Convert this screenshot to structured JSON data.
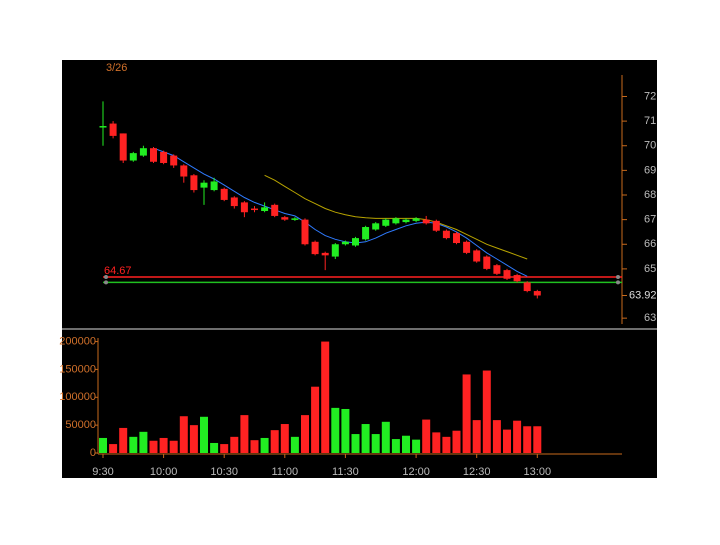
{
  "chart_data": [
    {
      "type": "candlestick",
      "title": "3/26",
      "open": [
        70.75,
        70.9,
        70.5,
        69.4,
        69.6,
        69.9,
        69.75,
        69.6,
        69.2,
        68.8,
        68.3,
        68.2,
        68.25,
        67.9,
        67.7,
        67.45,
        67.35,
        67.6,
        67.1,
        67.0,
        67.0,
        66.1,
        65.65,
        65.5,
        66.0,
        65.95,
        66.2,
        66.6,
        66.75,
        66.85,
        66.9,
        66.95,
        67.0,
        66.95,
        66.55,
        66.45,
        66.1,
        65.75,
        65.5,
        65.15,
        64.95,
        64.75,
        64.45,
        64.1
      ],
      "high": [
        71.8,
        71.0,
        70.5,
        69.75,
        70.0,
        69.95,
        69.8,
        69.65,
        69.25,
        68.85,
        68.6,
        68.7,
        68.3,
        67.95,
        67.75,
        67.55,
        67.7,
        67.65,
        67.15,
        67.1,
        67.05,
        66.15,
        65.7,
        66.05,
        66.15,
        66.3,
        66.75,
        66.9,
        67.05,
        67.1,
        67.05,
        67.1,
        67.15,
        67.0,
        66.6,
        66.5,
        66.15,
        65.8,
        65.55,
        65.2,
        65.0,
        64.8,
        64.5,
        64.15
      ],
      "low": [
        70.0,
        70.3,
        69.3,
        69.35,
        69.55,
        69.3,
        69.25,
        69.1,
        68.5,
        68.1,
        67.6,
        68.15,
        67.75,
        67.45,
        67.1,
        67.3,
        67.3,
        67.1,
        66.95,
        66.95,
        65.95,
        65.55,
        64.95,
        65.4,
        65.95,
        65.9,
        66.15,
        66.55,
        66.7,
        66.8,
        66.85,
        66.9,
        66.8,
        66.5,
        66.2,
        66.0,
        65.6,
        65.25,
        64.95,
        64.75,
        64.55,
        64.45,
        64.05,
        63.8
      ],
      "close": [
        70.8,
        70.4,
        69.4,
        69.7,
        69.9,
        69.35,
        69.3,
        69.2,
        68.75,
        68.2,
        68.5,
        68.55,
        67.8,
        67.55,
        67.3,
        67.4,
        67.5,
        67.15,
        67.0,
        67.05,
        66.0,
        65.6,
        65.55,
        66.0,
        66.1,
        66.25,
        66.7,
        66.85,
        67.0,
        67.05,
        67.0,
        67.05,
        66.85,
        66.55,
        66.25,
        66.05,
        65.65,
        65.3,
        65.0,
        64.8,
        64.6,
        64.5,
        64.1,
        63.92
      ],
      "up_color": "#22ee22",
      "down_color": "#ff2222",
      "series": [
        {
          "color": "#2f7bff",
          "values": [
            null,
            null,
            null,
            null,
            null,
            69.9,
            69.75,
            69.6,
            69.35,
            69.1,
            68.85,
            68.65,
            68.4,
            68.15,
            67.9,
            67.7,
            67.55,
            67.4,
            67.25,
            67.15,
            66.9,
            66.6,
            66.35,
            66.2,
            66.1,
            66.05,
            66.1,
            66.25,
            66.45,
            66.6,
            66.75,
            66.85,
            66.9,
            66.85,
            66.7,
            66.5,
            66.25,
            65.95,
            65.65,
            65.4,
            65.15,
            64.9,
            64.7,
            null
          ]
        },
        {
          "color": "#b8a400",
          "values": [
            null,
            null,
            null,
            null,
            null,
            null,
            null,
            null,
            null,
            null,
            null,
            null,
            null,
            null,
            null,
            null,
            68.8,
            68.6,
            68.35,
            68.1,
            67.85,
            67.65,
            67.45,
            67.3,
            67.2,
            67.12,
            67.08,
            67.05,
            67.05,
            67.05,
            67.05,
            67.05,
            67.0,
            66.9,
            66.75,
            66.6,
            66.4,
            66.2,
            66.0,
            65.85,
            65.7,
            65.55,
            65.4,
            null
          ]
        }
      ],
      "hlines": [
        {
          "value": 64.67,
          "color": "#ff2020",
          "show_label": true
        },
        {
          "value": 64.45,
          "color": "#20c020",
          "show_label": false
        }
      ],
      "last_price": 63.92,
      "ylim": [
        62.6,
        73.4
      ],
      "yticks": [
        63,
        65,
        66,
        67,
        68,
        69,
        70,
        71,
        72
      ]
    },
    {
      "type": "bar",
      "categories": [
        "9:30",
        null,
        null,
        null,
        null,
        null,
        "10:00",
        null,
        null,
        null,
        null,
        null,
        "10:30",
        null,
        null,
        null,
        null,
        null,
        "11:00",
        null,
        null,
        null,
        null,
        null,
        "11:30",
        null,
        null,
        null,
        null,
        null,
        null,
        "12:00",
        null,
        null,
        null,
        null,
        null,
        "12:30",
        null,
        null,
        null,
        null,
        null,
        "13:00"
      ],
      "values": [
        27000,
        16000,
        45000,
        29000,
        38000,
        22000,
        27000,
        22000,
        66000,
        50000,
        65000,
        18000,
        16000,
        29000,
        68000,
        23000,
        27000,
        41000,
        52000,
        29000,
        68000,
        119000,
        200000,
        81000,
        79000,
        34000,
        52000,
        34000,
        56000,
        25000,
        31000,
        24000,
        60000,
        37000,
        29000,
        40000,
        141000,
        59000,
        148000,
        59000,
        42000,
        58000,
        48000,
        48000
      ],
      "ylim": [
        0,
        210000
      ],
      "yticks": [
        0,
        50000,
        100000,
        150000,
        200000
      ]
    }
  ]
}
